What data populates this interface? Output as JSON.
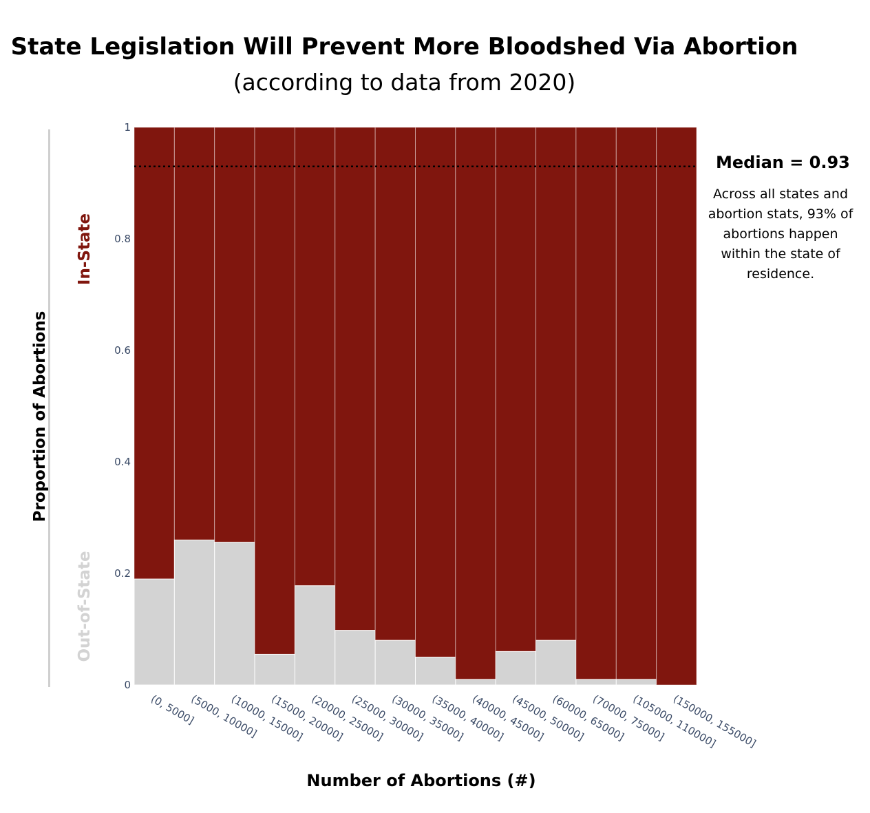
{
  "chart_data": {
    "type": "bar",
    "stacked": true,
    "title": "State Legislation Will Prevent More Bloodshed Via Abortion",
    "subtitle": "(according to data from 2020)",
    "xlabel": "Number of Abortions (#)",
    "ylabel": "Proportion of Abortions",
    "ylim": [
      0,
      1
    ],
    "yticks": [
      "0",
      "0.2",
      "0.4",
      "0.6",
      "0.8",
      "1"
    ],
    "ytick_values": [
      0,
      0.2,
      0.4,
      0.6,
      0.8,
      1
    ],
    "categories": [
      "(0, 5000]",
      "(5000, 10000]",
      "(10000, 15000]",
      "(15000, 20000]",
      "(20000, 25000]",
      "(25000, 30000]",
      "(30000, 35000]",
      "(35000, 40000]",
      "(40000, 45000]",
      "(45000, 50000]",
      "(60000, 65000]",
      "(70000, 75000]",
      "(105000, 110000]",
      "(150000, 155000]"
    ],
    "series": [
      {
        "name": "Out-of-State",
        "color": "#d3d3d3",
        "values": [
          0.19,
          0.26,
          0.256,
          0.055,
          0.178,
          0.098,
          0.08,
          0.05,
          0.01,
          0.06,
          0.08,
          0.01,
          0.01,
          0.0
        ]
      },
      {
        "name": "In-State",
        "color": "#80160e",
        "values": [
          0.81,
          0.74,
          0.744,
          0.945,
          0.822,
          0.902,
          0.92,
          0.95,
          0.99,
          0.94,
          0.92,
          0.99,
          0.99,
          1.0
        ]
      }
    ],
    "median": {
      "value": 0.93,
      "label": "Median = 0.93",
      "note": "Across all states and abortion stats, 93% of abortions happen within the state of residence."
    },
    "grid": false,
    "legend": "inline labels on left"
  }
}
